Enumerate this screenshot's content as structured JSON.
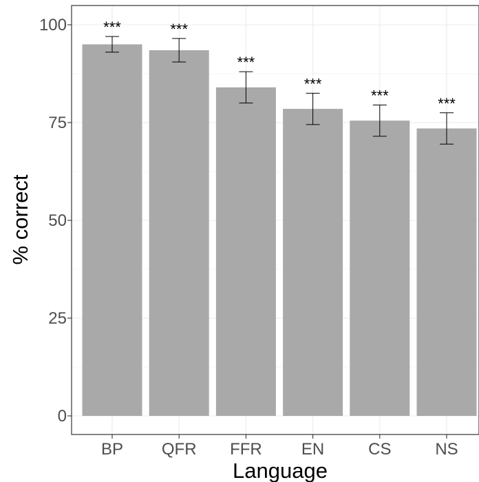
{
  "chart_data": {
    "type": "bar",
    "title": "",
    "xlabel": "Language",
    "ylabel": "% correct",
    "categories": [
      "BP",
      "QFR",
      "FFR",
      "EN",
      "CS",
      "NS"
    ],
    "values": [
      95.0,
      93.5,
      84.0,
      78.5,
      75.5,
      73.5
    ],
    "error_bars": [
      {
        "low": 93.0,
        "high": 97.0
      },
      {
        "low": 90.5,
        "high": 96.5
      },
      {
        "low": 80.0,
        "high": 88.0
      },
      {
        "low": 74.5,
        "high": 82.5
      },
      {
        "low": 71.5,
        "high": 79.5
      },
      {
        "low": 69.5,
        "high": 77.5
      }
    ],
    "annotations": [
      "***",
      "***",
      "***",
      "***",
      "***",
      "***"
    ],
    "ylim": [
      -5,
      105
    ],
    "yticks": [
      0,
      25,
      50,
      75,
      100
    ],
    "grid": true,
    "legend": "none",
    "colors": {
      "bar": "#a9a9a9",
      "grid": "#ebebeb",
      "axis": "#333333",
      "error_bar": "#000000"
    }
  }
}
